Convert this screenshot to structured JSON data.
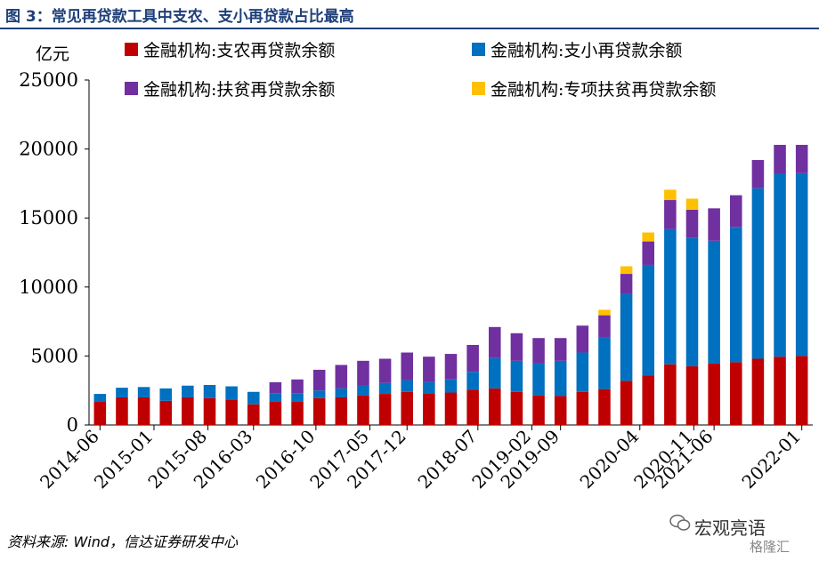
{
  "figure": {
    "title": "图 3：常见再贷款工具中支农、支小再贷款占比最高",
    "unit_label": "亿元",
    "source": "资料来源: Wind，信达证券研发中心",
    "watermark_main": "宏观亮语",
    "watermark_sub": "格隆汇"
  },
  "chart_data": {
    "type": "bar",
    "stacked": true,
    "ylim": [
      0,
      25000
    ],
    "yticks": [
      0,
      5000,
      10000,
      15000,
      20000,
      25000
    ],
    "ylabel": "亿元",
    "legend_position": "top",
    "tick_labels": [
      "2014-06",
      "2015-01",
      "2015-08",
      "2016-03",
      "2016-10",
      "2017-05",
      "2017-12",
      "2018-07",
      "2019-02",
      "2019-09",
      "2020-04",
      "2020-11",
      "2021-06",
      "2022-01"
    ],
    "categories": [
      "2014-06",
      "2014-09",
      "2014-12",
      "2015-03",
      "2015-06",
      "2015-09",
      "2015-12",
      "2016-03",
      "2016-06",
      "2016-09",
      "2016-12",
      "2017-03",
      "2017-06",
      "2017-09",
      "2017-12",
      "2018-03",
      "2018-06",
      "2018-09",
      "2018-12",
      "2019-03",
      "2019-06",
      "2019-09",
      "2019-12",
      "2020-03",
      "2020-06",
      "2020-09",
      "2020-12",
      "2021-03",
      "2021-06",
      "2021-09",
      "2021-12",
      "2022-03",
      "2022-06"
    ],
    "series": [
      {
        "name": "金融机构:支农再贷款余额",
        "color": "#c00000",
        "values": [
          1700,
          2000,
          2000,
          1750,
          2000,
          1950,
          1850,
          1500,
          1700,
          1700,
          1950,
          2000,
          2150,
          2250,
          2400,
          2300,
          2350,
          2550,
          2650,
          2400,
          2150,
          2100,
          2400,
          2600,
          3200,
          3600,
          4400,
          4250,
          4450,
          4550,
          4800,
          4950,
          5000
        ]
      },
      {
        "name": "金融机构:支小再贷款余额",
        "color": "#0070c0",
        "values": [
          550,
          700,
          750,
          900,
          850,
          950,
          950,
          900,
          600,
          600,
          550,
          650,
          750,
          800,
          850,
          800,
          950,
          1300,
          2200,
          2250,
          2300,
          2550,
          2850,
          3750,
          6300,
          8000,
          9800,
          9300,
          8900,
          9800,
          12350,
          13250,
          13250
        ]
      },
      {
        "name": "金融机构:扶贫再贷款余额",
        "color": "#7030a0",
        "values": [
          0,
          0,
          0,
          0,
          0,
          0,
          0,
          0,
          800,
          1000,
          1500,
          1700,
          1750,
          1750,
          2000,
          1850,
          1850,
          1950,
          2250,
          2000,
          1850,
          1650,
          1950,
          1600,
          1450,
          1700,
          2100,
          2050,
          2350,
          2300,
          2050,
          2100,
          2050
        ]
      },
      {
        "name": "金融机构:专项扶贫再贷款余额",
        "color": "#ffc000",
        "values": [
          0,
          0,
          0,
          0,
          0,
          0,
          0,
          0,
          0,
          0,
          0,
          0,
          0,
          0,
          0,
          0,
          0,
          0,
          0,
          0,
          0,
          0,
          0,
          400,
          550,
          650,
          750,
          800,
          0,
          0,
          0,
          0,
          0
        ]
      }
    ]
  }
}
